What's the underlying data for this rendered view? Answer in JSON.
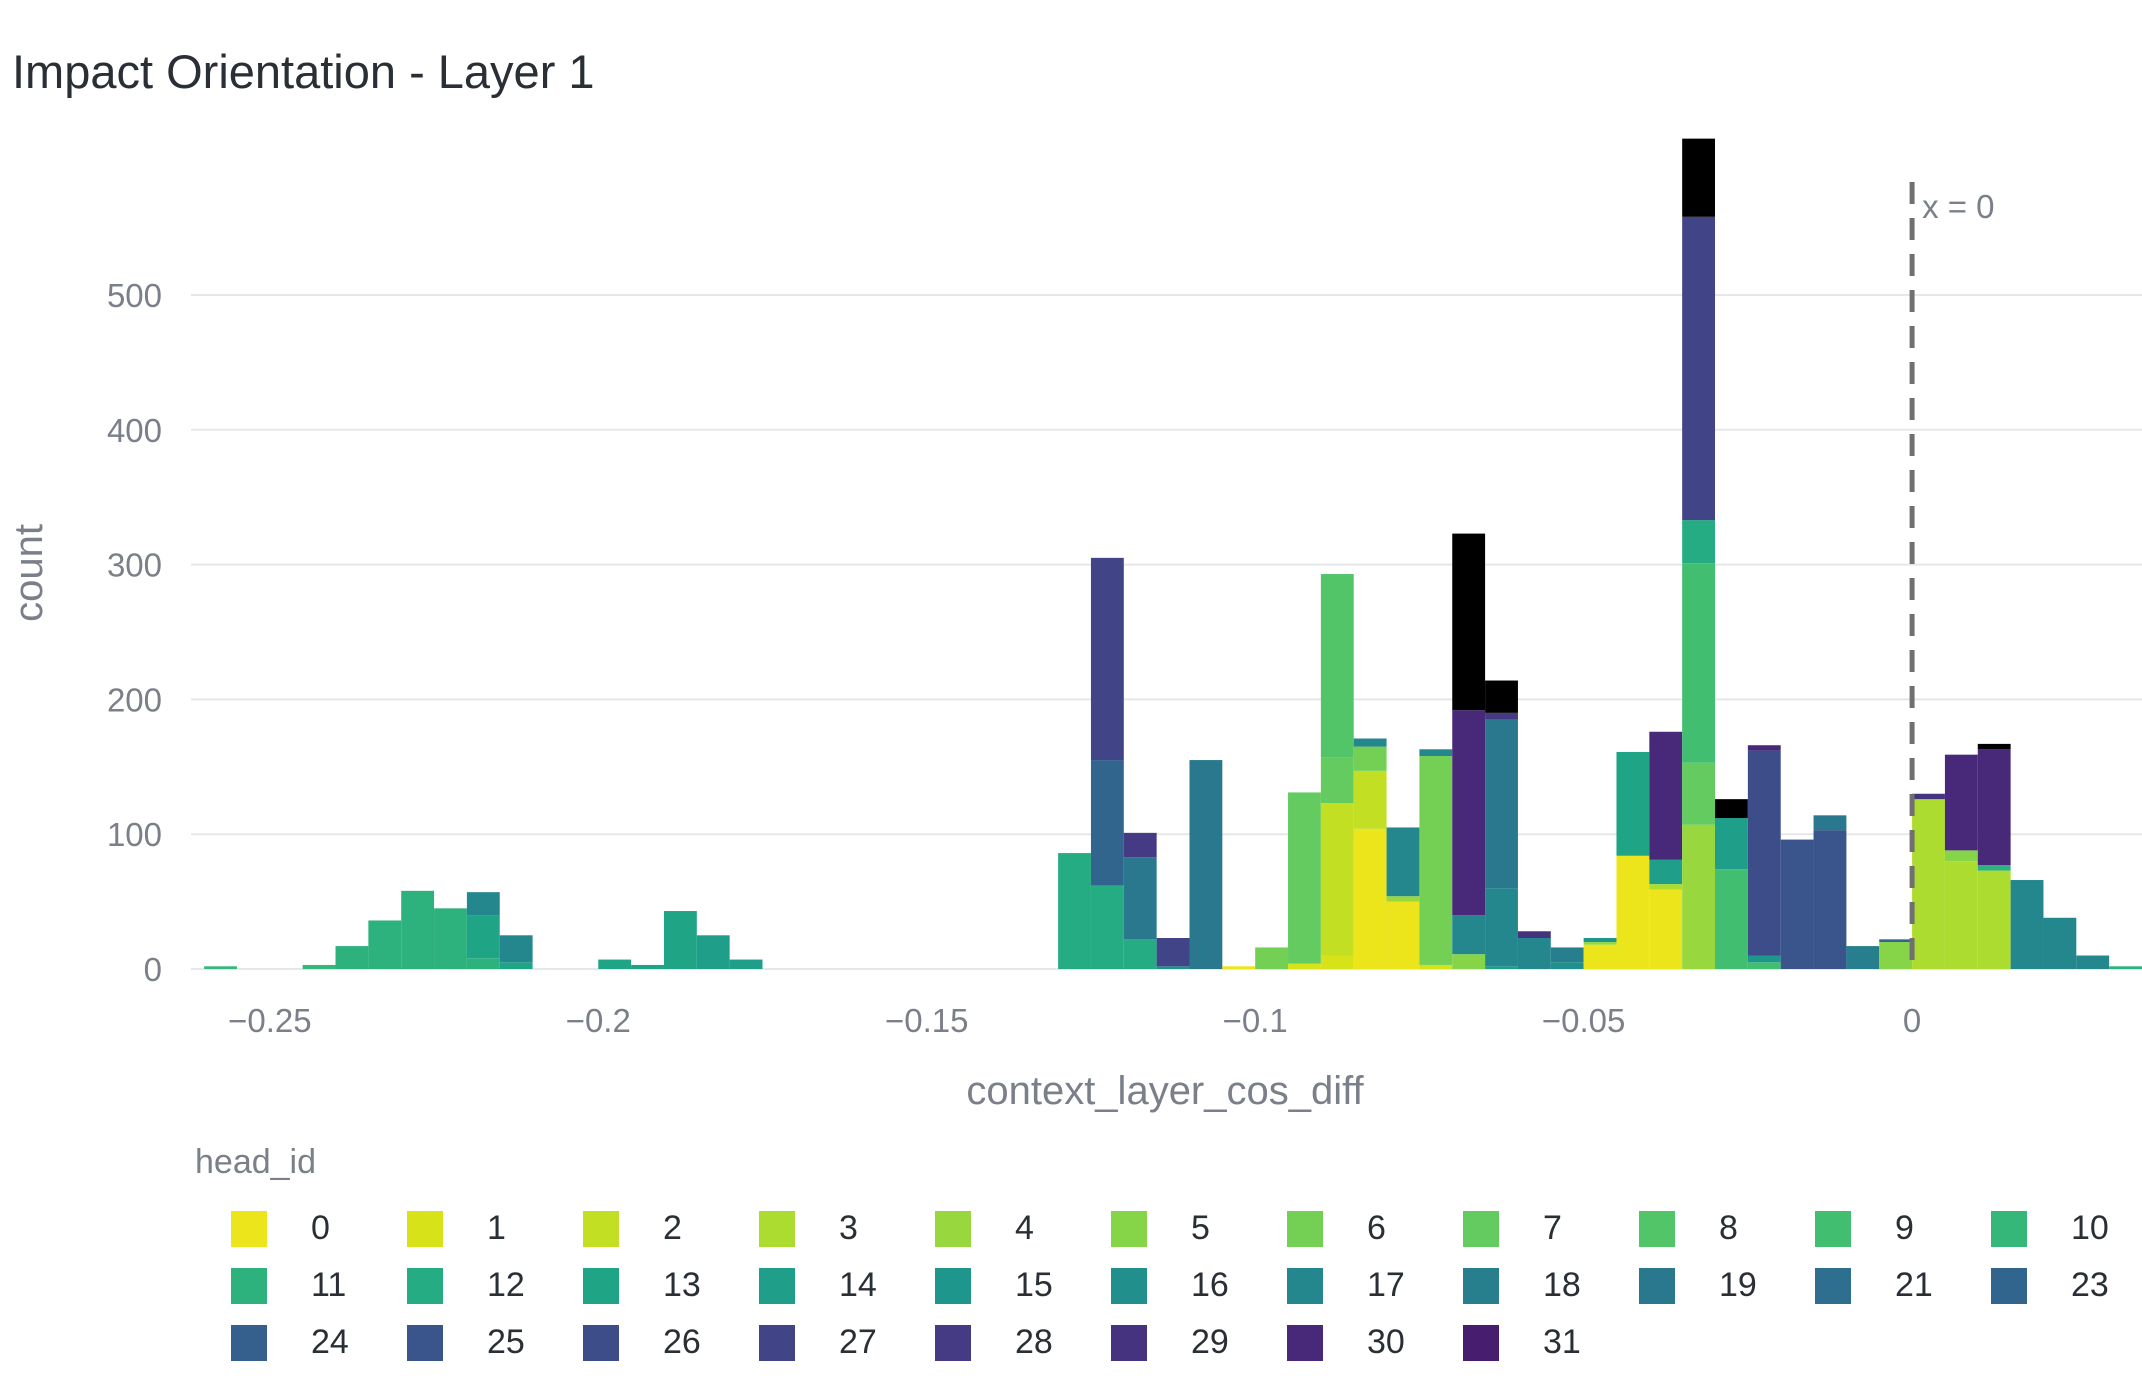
{
  "chart_data": {
    "type": "bar",
    "title": "Impact Orientation - Layer 1",
    "xlabel": "context_layer_cos_diff",
    "ylabel": "count",
    "xlim": [
      -0.262,
      0.035
    ],
    "ylim": [
      0,
      580
    ],
    "x_ticks": [
      -0.25,
      -0.2,
      -0.15,
      -0.1,
      -0.05,
      0
    ],
    "x_tick_labels": [
      "−0.25",
      "−0.2",
      "−0.15",
      "−0.1",
      "−0.05",
      "0"
    ],
    "y_ticks": [
      0,
      100,
      200,
      300,
      400,
      500
    ],
    "y_tick_labels": [
      "0",
      "100",
      "200",
      "300",
      "400",
      "500"
    ],
    "grid": true,
    "bin_width": 0.005,
    "vline": {
      "x": 0,
      "label": "x = 0",
      "style": "dashed"
    },
    "legend": {
      "title": "head_id",
      "position": "bottom",
      "entries": [
        "0",
        "1",
        "2",
        "3",
        "4",
        "5",
        "6",
        "7",
        "8",
        "9",
        "10",
        "11",
        "12",
        "13",
        "14",
        "15",
        "16",
        "17",
        "18",
        "19",
        "21",
        "23",
        "24",
        "25",
        "26",
        "27",
        "28",
        "29",
        "30",
        "31"
      ],
      "colors": [
        "#ece51b",
        "#d8e219",
        "#c2df23",
        "#addc30",
        "#98d83e",
        "#86d549",
        "#74d055",
        "#63cb5f",
        "#52c569",
        "#42be71",
        "#35b779",
        "#2db27d",
        "#25ac82",
        "#20a486",
        "#1f9e89",
        "#1f968b",
        "#21908d",
        "#24878e",
        "#277f8e",
        "#2a788e",
        "#2e6e8e",
        "#32658e",
        "#355f8d",
        "#3a548c",
        "#3d4d8a",
        "#414487",
        "#443b84",
        "#46337f",
        "#482878",
        "#471d6f"
      ]
    },
    "bars": [
      {
        "x": -0.2575,
        "segments": [
          [
            10,
            2
          ]
        ]
      },
      {
        "x": -0.2425,
        "segments": [
          [
            10,
            3
          ]
        ]
      },
      {
        "x": -0.2375,
        "segments": [
          [
            11,
            17
          ]
        ]
      },
      {
        "x": -0.2325,
        "segments": [
          [
            11,
            36
          ]
        ]
      },
      {
        "x": -0.2275,
        "segments": [
          [
            11,
            58
          ]
        ]
      },
      {
        "x": -0.2225,
        "segments": [
          [
            11,
            45
          ]
        ]
      },
      {
        "x": -0.2175,
        "segments": [
          [
            11,
            8
          ],
          [
            13,
            32
          ],
          [
            17,
            17
          ]
        ]
      },
      {
        "x": -0.2125,
        "segments": [
          [
            13,
            5
          ],
          [
            17,
            20
          ]
        ]
      },
      {
        "x": -0.1975,
        "segments": [
          [
            13,
            7
          ]
        ]
      },
      {
        "x": -0.1925,
        "segments": [
          [
            13,
            3
          ]
        ]
      },
      {
        "x": -0.1875,
        "segments": [
          [
            13,
            43
          ]
        ]
      },
      {
        "x": -0.1825,
        "segments": [
          [
            14,
            25
          ]
        ]
      },
      {
        "x": -0.1775,
        "segments": [
          [
            14,
            7
          ]
        ]
      },
      {
        "x": -0.1275,
        "segments": [
          [
            12,
            86
          ]
        ]
      },
      {
        "x": -0.1225,
        "segments": [
          [
            12,
            62
          ],
          [
            21,
            93
          ],
          [
            25,
            150
          ]
        ]
      },
      {
        "x": -0.1175,
        "segments": [
          [
            12,
            22
          ],
          [
            19,
            61
          ],
          [
            26,
            18
          ]
        ]
      },
      {
        "x": -0.1125,
        "segments": [
          [
            16,
            2
          ],
          [
            25,
            21
          ]
        ]
      },
      {
        "x": -0.1075,
        "segments": [
          [
            19,
            155
          ]
        ]
      },
      {
        "x": -0.1025,
        "segments": [
          [
            0,
            2
          ]
        ]
      },
      {
        "x": -0.0975,
        "segments": [
          [
            6,
            16
          ]
        ]
      },
      {
        "x": -0.0925,
        "segments": [
          [
            1,
            4
          ],
          [
            7,
            127
          ]
        ]
      },
      {
        "x": -0.0875,
        "segments": [
          [
            1,
            10
          ],
          [
            2,
            113
          ],
          [
            7,
            34
          ],
          [
            8,
            136
          ]
        ]
      },
      {
        "x": -0.0825,
        "segments": [
          [
            0,
            104
          ],
          [
            2,
            43
          ],
          [
            6,
            18
          ],
          [
            17,
            6
          ]
        ]
      },
      {
        "x": -0.0775,
        "segments": [
          [
            0,
            50
          ],
          [
            4,
            4
          ],
          [
            17,
            51
          ]
        ]
      },
      {
        "x": -0.0725,
        "segments": [
          [
            1,
            3
          ],
          [
            6,
            155
          ],
          [
            17,
            5
          ]
        ]
      },
      {
        "x": -0.0675,
        "segments": [
          [
            5,
            11
          ],
          [
            17,
            29
          ],
          [
            28,
            152
          ],
          [
            30,
            131
          ]
        ]
      },
      {
        "x": -0.0625,
        "segments": [
          [
            14,
            2
          ],
          [
            17,
            58
          ],
          [
            19,
            125
          ],
          [
            26,
            5
          ],
          [
            30,
            24
          ]
        ]
      },
      {
        "x": -0.0575,
        "segments": [
          [
            17,
            23
          ],
          [
            27,
            5
          ]
        ]
      },
      {
        "x": -0.0525,
        "segments": [
          [
            16,
            5
          ],
          [
            18,
            11
          ]
        ]
      },
      {
        "x": -0.0475,
        "segments": [
          [
            0,
            18
          ],
          [
            4,
            2
          ],
          [
            15,
            3
          ]
        ]
      },
      {
        "x": -0.0425,
        "segments": [
          [
            0,
            84
          ],
          [
            13,
            77
          ]
        ]
      },
      {
        "x": -0.0375,
        "segments": [
          [
            0,
            59
          ],
          [
            3,
            4
          ],
          [
            14,
            18
          ],
          [
            28,
            95
          ]
        ]
      },
      {
        "x": -0.0325,
        "segments": [
          [
            4,
            107
          ],
          [
            7,
            46
          ],
          [
            9,
            148
          ],
          [
            12,
            32
          ],
          [
            25,
            225
          ],
          [
            30,
            58
          ]
        ]
      },
      {
        "x": -0.0275,
        "segments": [
          [
            9,
            74
          ],
          [
            14,
            38
          ],
          [
            30,
            14
          ]
        ]
      },
      {
        "x": -0.0225,
        "segments": [
          [
            9,
            5
          ],
          [
            15,
            5
          ],
          [
            24,
            152
          ],
          [
            28,
            4
          ]
        ]
      },
      {
        "x": -0.0175,
        "segments": [
          [
            23,
            96
          ]
        ]
      },
      {
        "x": -0.0125,
        "segments": [
          [
            23,
            103
          ],
          [
            19,
            11
          ]
        ]
      },
      {
        "x": -0.0075,
        "segments": [
          [
            18,
            17
          ]
        ]
      },
      {
        "x": -0.0025,
        "segments": [
          [
            5,
            20
          ],
          [
            21,
            2
          ]
        ]
      },
      {
        "x": 0.0025,
        "segments": [
          [
            3,
            126
          ],
          [
            27,
            4
          ]
        ]
      },
      {
        "x": 0.0075,
        "segments": [
          [
            3,
            80
          ],
          [
            5,
            8
          ],
          [
            28,
            71
          ]
        ]
      },
      {
        "x": 0.0125,
        "segments": [
          [
            3,
            73
          ],
          [
            11,
            4
          ],
          [
            28,
            86
          ],
          [
            30,
            4
          ]
        ]
      },
      {
        "x": 0.0175,
        "segments": [
          [
            17,
            66
          ]
        ]
      },
      {
        "x": 0.0225,
        "segments": [
          [
            17,
            38
          ]
        ]
      },
      {
        "x": 0.0275,
        "segments": [
          [
            17,
            10
          ]
        ]
      },
      {
        "x": 0.0325,
        "segments": [
          [
            11,
            2
          ]
        ]
      }
    ]
  }
}
